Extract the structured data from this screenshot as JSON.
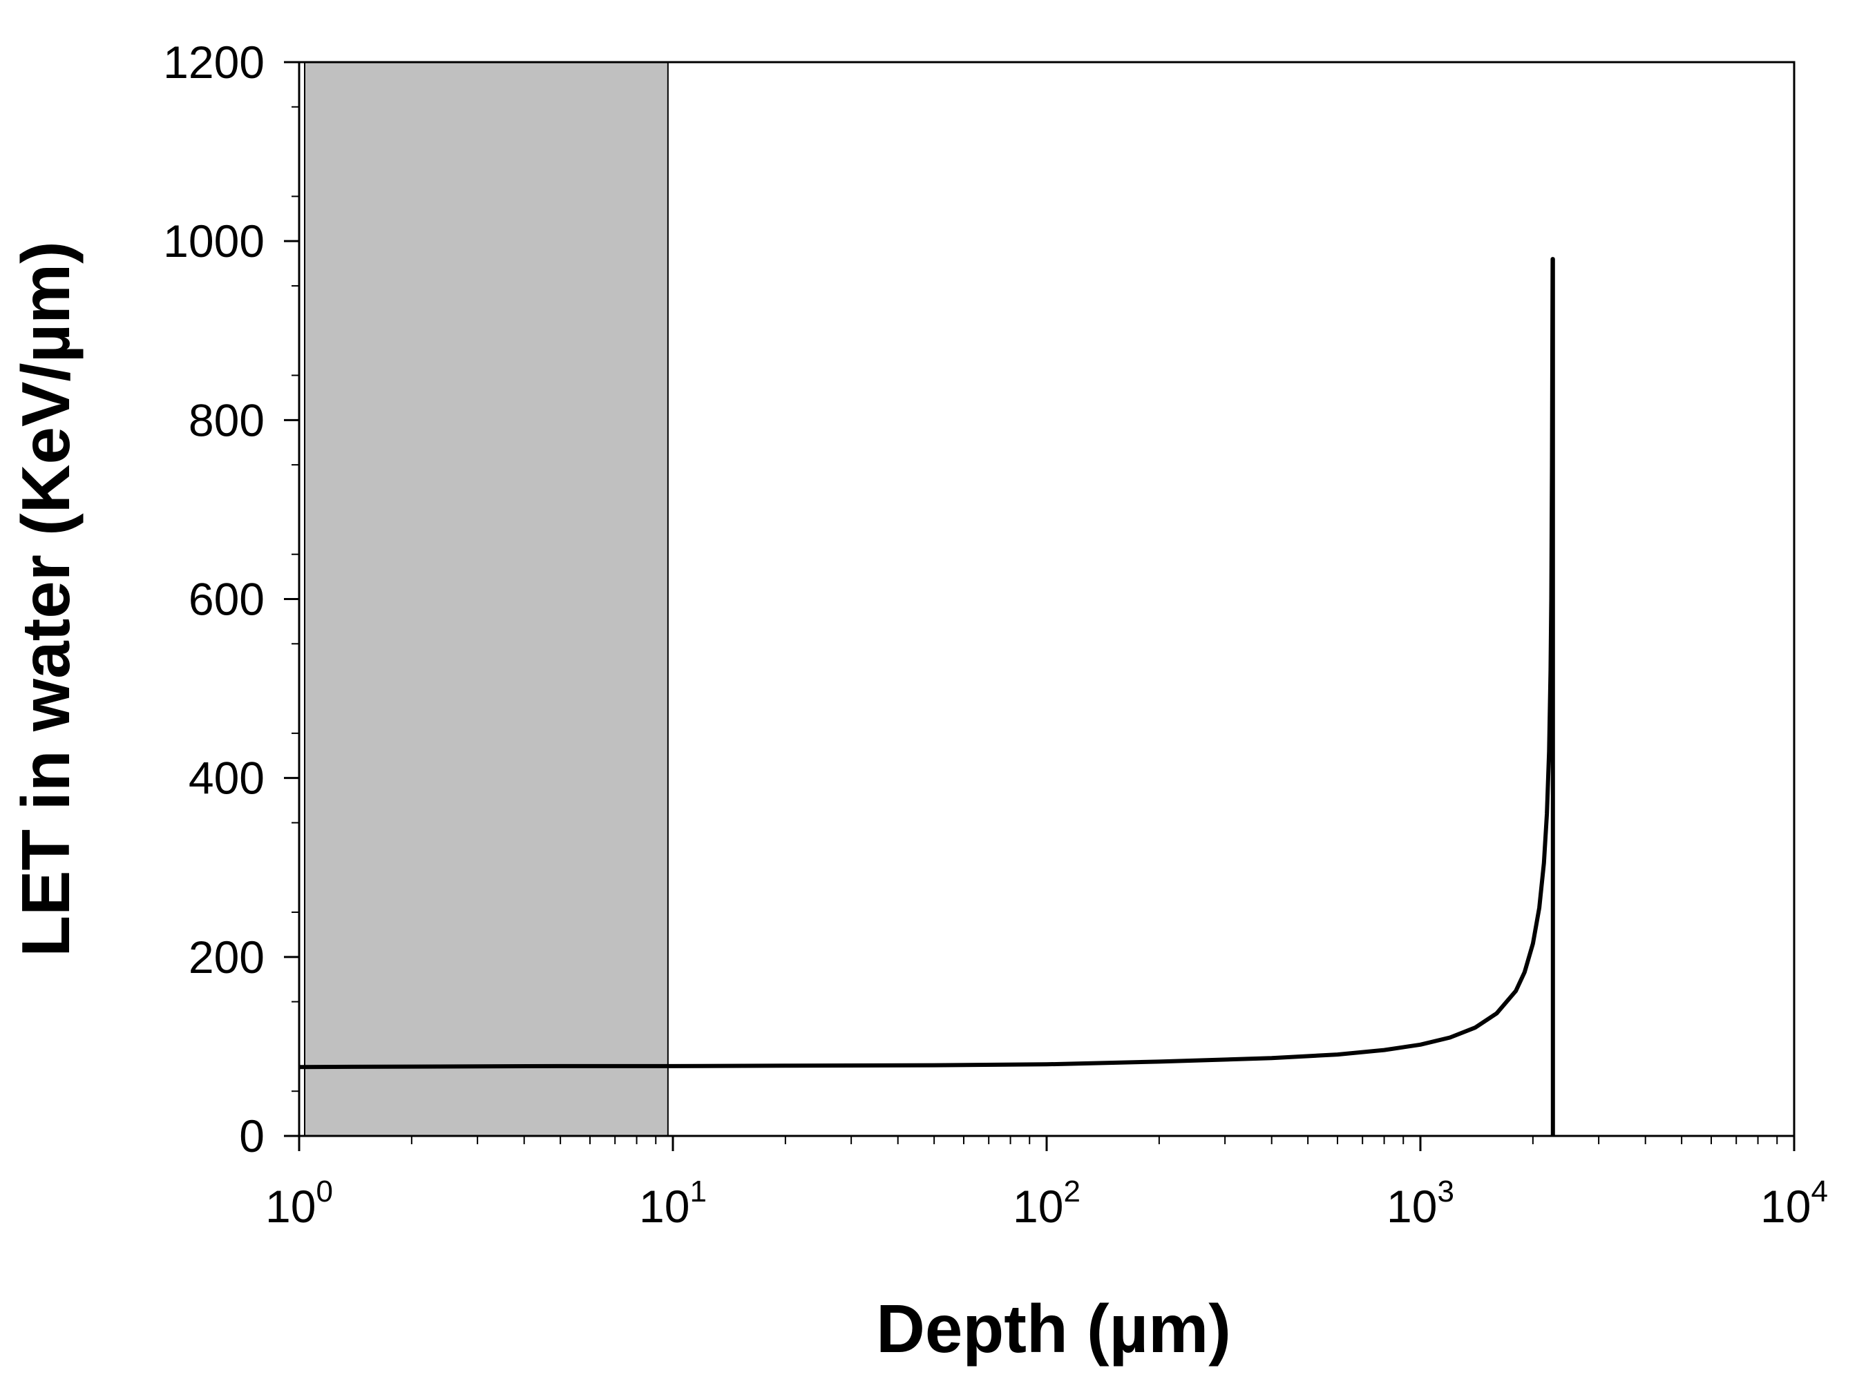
{
  "chart_data": {
    "type": "line",
    "xlabel": "Depth (µm)",
    "ylabel": "LET in water (KeV/µm)",
    "x_scale": "log",
    "xlim": [
      1,
      10000
    ],
    "ylim": [
      0,
      1200
    ],
    "grid": false,
    "x_ticks": [
      {
        "value": 1,
        "base": "10",
        "exp": "0"
      },
      {
        "value": 10,
        "base": "10",
        "exp": "1"
      },
      {
        "value": 100,
        "base": "10",
        "exp": "2"
      },
      {
        "value": 1000,
        "base": "10",
        "exp": "3"
      },
      {
        "value": 10000,
        "base": "10",
        "exp": "4"
      }
    ],
    "y_ticks": [
      "0",
      "200",
      "400",
      "600",
      "800",
      "1000",
      "1200"
    ],
    "shaded_region": {
      "x": [
        1,
        9.7
      ],
      "color": "#c0c0c0"
    },
    "series": [
      {
        "x": [
          1,
          2,
          5,
          10,
          20,
          50,
          100,
          200,
          400,
          600,
          800,
          1000,
          1200,
          1400,
          1600,
          1800,
          1900,
          2000,
          2080,
          2140,
          2180,
          2210,
          2230,
          2240,
          2250,
          2258,
          2262,
          2262
        ],
        "y": [
          77,
          77.5,
          78,
          78,
          78.5,
          79,
          80,
          83,
          87,
          91,
          96,
          102,
          110,
          121,
          137,
          162,
          183,
          215,
          255,
          305,
          360,
          430,
          520,
          600,
          750,
          980,
          980,
          0
        ]
      }
    ]
  }
}
